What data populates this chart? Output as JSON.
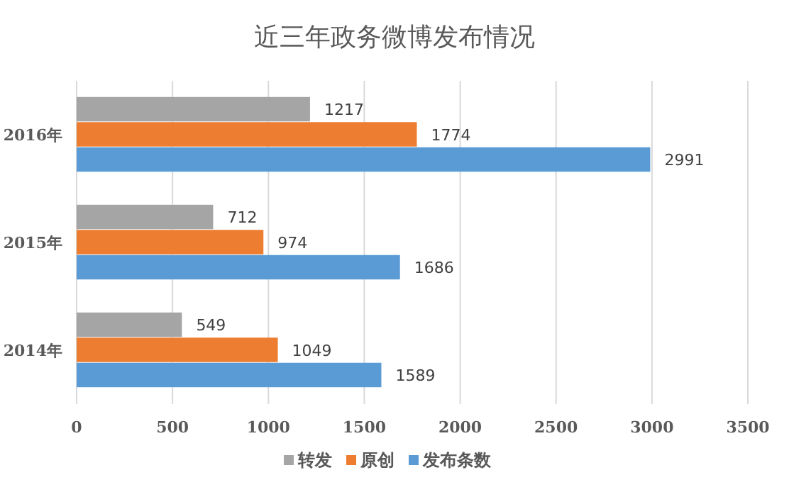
{
  "chart_data": {
    "type": "bar",
    "orientation": "horizontal",
    "title": "近三年政务微博发布情况",
    "categories": [
      "2016年",
      "2015年",
      "2014年"
    ],
    "series": [
      {
        "name": "转发",
        "color": "#a5a5a5",
        "values": [
          1217,
          712,
          549
        ]
      },
      {
        "name": "原创",
        "color": "#ed7d31",
        "values": [
          1774,
          974,
          1049
        ]
      },
      {
        "name": "发布条数",
        "color": "#5b9bd5",
        "values": [
          2991,
          1686,
          1589
        ]
      }
    ],
    "xlim": [
      0,
      3500
    ],
    "xticks": [
      0,
      500,
      1000,
      1500,
      2000,
      2500,
      3000,
      3500
    ],
    "grid": "x",
    "legend": "bottom",
    "data_labels": true
  }
}
